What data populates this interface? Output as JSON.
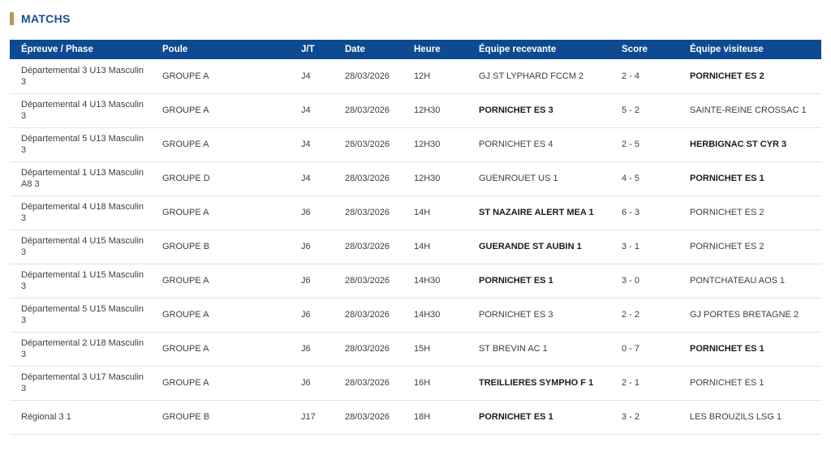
{
  "section": {
    "title": "MATCHS"
  },
  "colors": {
    "header_bg": "#0d4a91",
    "accent_bar": "#b5985a",
    "title": "#1b4c8f",
    "row_text": "#3e3e3e",
    "bold_text": "#1c1c1c",
    "divider": "#e2e2e2"
  },
  "table": {
    "columns": [
      {
        "key": "epreuve",
        "label": "Épreuve / Phase"
      },
      {
        "key": "poule",
        "label": "Poule"
      },
      {
        "key": "jt",
        "label": "J/T"
      },
      {
        "key": "date",
        "label": "Date"
      },
      {
        "key": "heure",
        "label": "Heure"
      },
      {
        "key": "home",
        "label": "Équipe recevante"
      },
      {
        "key": "score",
        "label": "Score"
      },
      {
        "key": "away",
        "label": "Équipe visiteuse"
      }
    ],
    "rows": [
      {
        "epreuve": "Départemental 3 U13 Masculin 3",
        "poule": "GROUPE A",
        "jt": "J4",
        "date": "28/03/2026",
        "heure": "12H",
        "home": "GJ ST LYPHARD FCCM 2",
        "home_bold": false,
        "score": "2 - 4",
        "away": "PORNICHET ES 2",
        "away_bold": true
      },
      {
        "epreuve": "Départemental 4 U13 Masculin 3",
        "poule": "GROUPE A",
        "jt": "J4",
        "date": "28/03/2026",
        "heure": "12H30",
        "home": "PORNICHET ES 3",
        "home_bold": true,
        "score": "5 - 2",
        "away": "SAINTE-REINE CROSSAC 1",
        "away_bold": false
      },
      {
        "epreuve": "Départemental 5 U13 Masculin 3",
        "poule": "GROUPE A",
        "jt": "J4",
        "date": "28/03/2026",
        "heure": "12H30",
        "home": "PORNICHET ES 4",
        "home_bold": false,
        "score": "2 - 5",
        "away": "HERBIGNAC ST CYR 3",
        "away_bold": true
      },
      {
        "epreuve": "Départemental 1 U13 Masculin A8 3",
        "poule": "GROUPE D",
        "jt": "J4",
        "date": "28/03/2026",
        "heure": "12H30",
        "home": "GUENROUET US 1",
        "home_bold": false,
        "score": "4 - 5",
        "away": "PORNICHET ES 1",
        "away_bold": true
      },
      {
        "epreuve": "Départemental 4 U18 Masculin 3",
        "poule": "GROUPE A",
        "jt": "J6",
        "date": "28/03/2026",
        "heure": "14H",
        "home": "ST NAZAIRE ALERT MEA 1",
        "home_bold": true,
        "score": "6 - 3",
        "away": "PORNICHET ES 2",
        "away_bold": false
      },
      {
        "epreuve": "Départemental 4 U15 Masculin 3",
        "poule": "GROUPE B",
        "jt": "J6",
        "date": "28/03/2026",
        "heure": "14H",
        "home": "GUERANDE ST AUBIN 1",
        "home_bold": true,
        "score": "3 - 1",
        "away": "PORNICHET ES 2",
        "away_bold": false
      },
      {
        "epreuve": "Départemental 1 U15 Masculin 3",
        "poule": "GROUPE A",
        "jt": "J6",
        "date": "28/03/2026",
        "heure": "14H30",
        "home": "PORNICHET ES 1",
        "home_bold": true,
        "score": "3 - 0",
        "away": "PONTCHATEAU AOS 1",
        "away_bold": false
      },
      {
        "epreuve": "Départemental 5 U15 Masculin 3",
        "poule": "GROUPE A",
        "jt": "J6",
        "date": "28/03/2026",
        "heure": "14H30",
        "home": "PORNICHET ES 3",
        "home_bold": false,
        "score": "2 - 2",
        "away": "GJ PORTES BRETAGNE 2",
        "away_bold": false
      },
      {
        "epreuve": "Départemental 2 U18 Masculin 3",
        "poule": "GROUPE A",
        "jt": "J6",
        "date": "28/03/2026",
        "heure": "15H",
        "home": "ST BREVIN AC 1",
        "home_bold": false,
        "score": "0 - 7",
        "away": "PORNICHET ES 1",
        "away_bold": true
      },
      {
        "epreuve": "Départemental 3 U17 Masculin 3",
        "poule": "GROUPE A",
        "jt": "J6",
        "date": "28/03/2026",
        "heure": "16H",
        "home": "TREILLIERES SYMPHO F 1",
        "home_bold": true,
        "score": "2 - 1",
        "away": "PORNICHET ES 1",
        "away_bold": false
      },
      {
        "epreuve": "Régional 3 1",
        "poule": "GROUPE B",
        "jt": "J17",
        "date": "28/03/2026",
        "heure": "18H",
        "home": "PORNICHET ES 1",
        "home_bold": true,
        "score": "3 - 2",
        "away": "LES BROUZILS LSG 1",
        "away_bold": false
      }
    ]
  }
}
